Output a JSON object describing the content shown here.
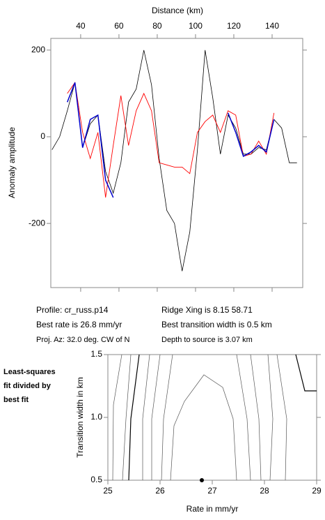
{
  "chart_data": [
    {
      "type": "line",
      "xlabel": "Distance (km)",
      "ylabel": "Anomaly amplitude",
      "x": [
        25,
        29,
        33,
        37,
        41,
        45,
        49,
        53,
        57,
        61,
        65,
        69,
        73,
        77,
        81,
        85,
        89,
        93,
        97,
        101,
        105,
        109,
        113,
        117,
        121,
        125,
        129,
        133,
        137,
        141,
        145,
        149,
        153
      ],
      "series": [
        {
          "color": "#000000",
          "values": [
            -30,
            0,
            60,
            125,
            -25,
            30,
            50,
            -80,
            -130,
            -60,
            80,
            110,
            200,
            120,
            -50,
            -170,
            -200,
            -310,
            -220,
            -30,
            200,
            90,
            -40,
            50,
            20,
            -40,
            -40,
            -25,
            -30,
            40,
            20,
            -60,
            -60
          ]
        },
        {
          "color": "#ff0000",
          "values": [
            null,
            null,
            100,
            125,
            10,
            -50,
            10,
            -140,
            -20,
            95,
            -20,
            60,
            100,
            60,
            -60,
            -65,
            -70,
            -70,
            -85,
            10,
            35,
            50,
            10,
            60,
            50,
            -45,
            -40,
            -10,
            -40,
            55,
            null,
            null,
            null
          ]
        },
        {
          "color": "#0000cc",
          "values": [
            null,
            null,
            80,
            125,
            -25,
            40,
            50,
            -100,
            -140,
            null,
            null,
            null,
            null,
            null,
            null,
            null,
            null,
            null,
            null,
            null,
            null,
            null,
            null,
            55,
            10,
            -45,
            -35,
            -20,
            -35,
            40,
            null,
            null,
            null
          ]
        }
      ],
      "xlim": [
        24.4,
        156
      ],
      "xticks": [
        40,
        60,
        80,
        100,
        120,
        140
      ],
      "ylim": [
        -348,
        227
      ],
      "yticks": [
        -200,
        0,
        200
      ]
    },
    {
      "type": "scatter",
      "xlabel": "Rate in mm/yr",
      "ylabel": "Transition width in km",
      "x": [
        26.8
      ],
      "values": [
        0.5
      ],
      "color": "#000000",
      "xlim": [
        25,
        29
      ],
      "xticks": [
        25,
        26,
        27,
        28,
        29
      ],
      "ylim": [
        0.5,
        1.5
      ],
      "yticks": [
        0.5,
        {
          "value": 1,
          "label": "1.0"
        },
        1.5
      ]
    }
  ],
  "info": {
    "left": [
      "Profile: cr_russ.p14",
      "Best rate is 26.8 mm/yr",
      "Proj. Az: 32.0 deg. CW of N"
    ],
    "right": [
      "Ridge Xing is 8.15 58.71",
      "Best transition width is 0.5 km",
      "Depth to source is   3.07 km"
    ]
  },
  "side_note": [
    "Least-squares",
    "fit divided by",
    "best fit"
  ]
}
